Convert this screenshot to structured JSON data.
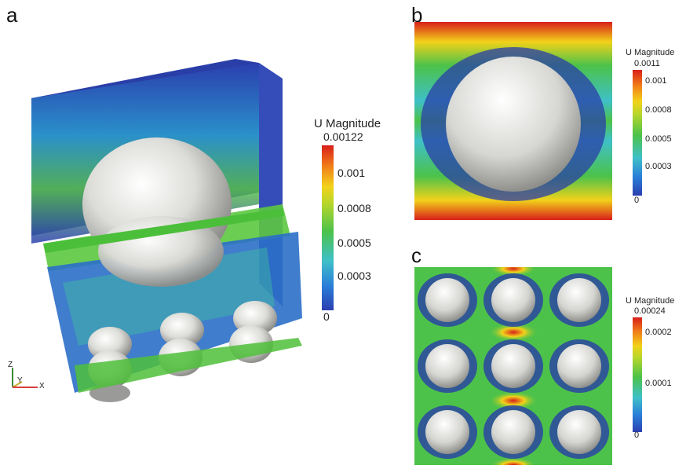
{
  "panels": {
    "a": {
      "letter": "a",
      "colorbar": {
        "title": "U Magnitude",
        "max_label": "0.00122",
        "ticks": [
          "0.001",
          "0.0008",
          "0.0005",
          "0.0003",
          "0"
        ]
      },
      "axes_triad": {
        "z": "Z",
        "y": "Y",
        "x": "X"
      }
    },
    "b": {
      "letter": "b",
      "colorbar": {
        "title": "U Magnitude",
        "max_label": "0.0011",
        "ticks": [
          "0.001",
          "0.0008",
          "0.0005",
          "0.0003",
          "0"
        ]
      }
    },
    "c": {
      "letter": "c",
      "colorbar": {
        "title": "U Magnitude",
        "max_label": "0.00024",
        "ticks": [
          "0.0002",
          "0.0001",
          "0"
        ]
      }
    }
  },
  "colors": {
    "colormap": [
      "#2b3fb0",
      "#2a7fd8",
      "#3fc0c8",
      "#4cc24a",
      "#b8d62a",
      "#f2d21a",
      "#f07a1a",
      "#d81f1a"
    ],
    "sphere": "#d9d9d6",
    "background": "#ffffff"
  }
}
